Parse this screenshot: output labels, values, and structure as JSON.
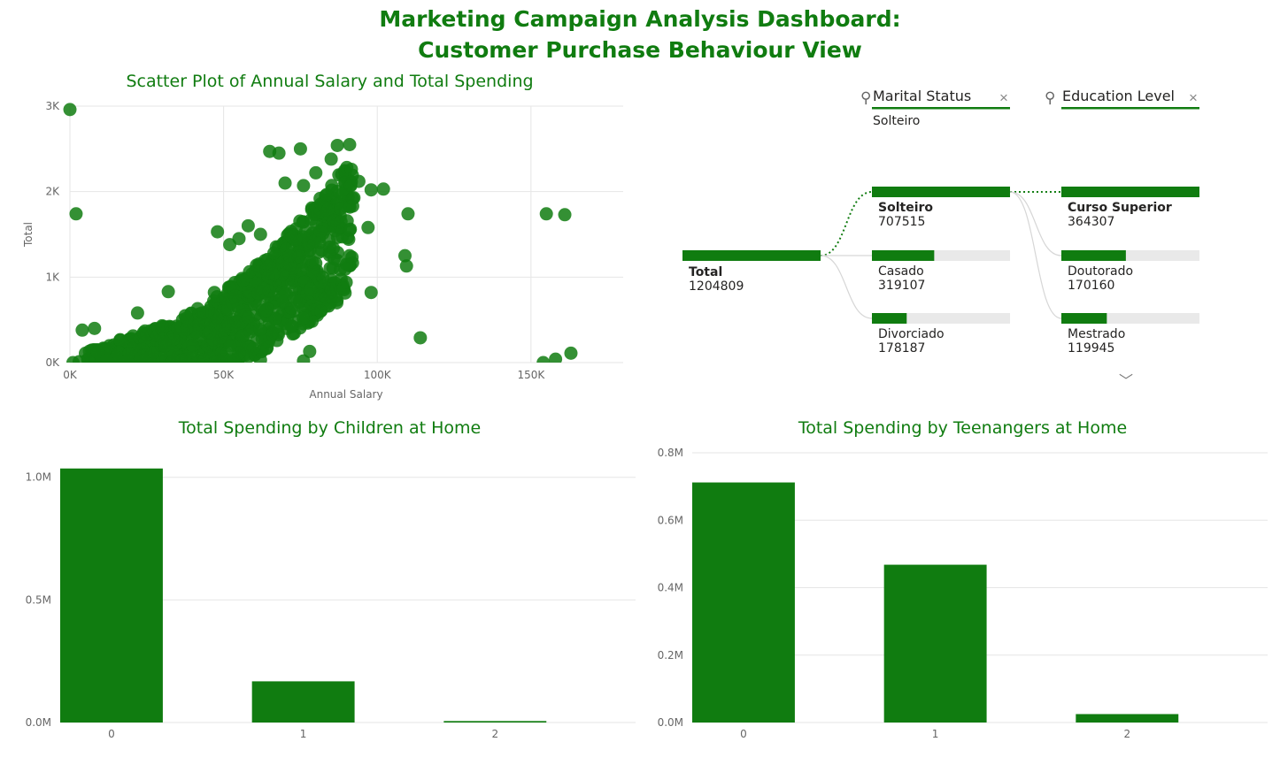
{
  "title": {
    "line1": "Marketing Campaign Analysis Dashboard:",
    "line2": "Customer Purchase Behaviour View"
  },
  "colors": {
    "accent": "#107C10",
    "track": "#e9e9e9",
    "grid": "#e6e6e6",
    "text": "#252423",
    "muted": "#666666"
  },
  "scatter": {
    "title": "Scatter Plot of Annual Salary and Total Spending",
    "xlabel": "Annual Salary",
    "ylabel": "Total",
    "xticks": [
      "0K",
      "50K",
      "100K",
      "150K"
    ],
    "yticks": [
      "0K",
      "1K",
      "2K",
      "3K"
    ]
  },
  "decomp": {
    "filters": [
      {
        "label": "Marital Status",
        "value": "Solteiro",
        "icon": "lightbulb-icon"
      },
      {
        "label": "Education Level",
        "value": "",
        "icon": "lightbulb-icon"
      }
    ],
    "total": {
      "label": "Total",
      "value": "1204809"
    },
    "marital": [
      {
        "label": "Solteiro",
        "value": "707515"
      },
      {
        "label": "Casado",
        "value": "319107"
      },
      {
        "label": "Divorciado",
        "value": "178187"
      }
    ],
    "education": [
      {
        "label": "Curso Superior",
        "value": "364307"
      },
      {
        "label": "Doutorado",
        "value": "170160"
      },
      {
        "label": "Mestrado",
        "value": "119945"
      }
    ]
  },
  "chart_data": [
    {
      "type": "scatter",
      "title": "Scatter Plot of Annual Salary and Total Spending",
      "xlabel": "Annual Salary",
      "ylabel": "Total",
      "xlim": [
        0,
        180000
      ],
      "ylim": [
        0,
        3000
      ],
      "grid": true,
      "outliers": [
        [
          0,
          2960
        ],
        [
          2000,
          1740
        ],
        [
          4000,
          380
        ],
        [
          8000,
          400
        ],
        [
          22000,
          580
        ],
        [
          32000,
          830
        ],
        [
          38000,
          520
        ],
        [
          48000,
          1530
        ],
        [
          52000,
          1380
        ],
        [
          58000,
          1600
        ],
        [
          68000,
          2450
        ],
        [
          75000,
          2500
        ],
        [
          80000,
          2220
        ],
        [
          85000,
          2380
        ],
        [
          87000,
          2540
        ],
        [
          91000,
          2550
        ],
        [
          94000,
          2120
        ],
        [
          98000,
          2020
        ],
        [
          97000,
          1580
        ],
        [
          92000,
          1920
        ],
        [
          90000,
          1150
        ],
        [
          85000,
          860
        ],
        [
          89000,
          870
        ],
        [
          98000,
          820
        ],
        [
          102000,
          2030
        ],
        [
          110000,
          1740
        ],
        [
          91000,
          1250
        ],
        [
          88000,
          1800
        ],
        [
          72000,
          430
        ],
        [
          109000,
          1250
        ],
        [
          109500,
          1130
        ],
        [
          114000,
          290
        ],
        [
          91000,
          1550
        ],
        [
          155000,
          1740
        ],
        [
          161000,
          1730
        ],
        [
          154000,
          0
        ],
        [
          158000,
          40
        ],
        [
          163000,
          110
        ],
        [
          76000,
          2070
        ],
        [
          65000,
          2470
        ],
        [
          70000,
          2100
        ],
        [
          62000,
          1500
        ],
        [
          55000,
          1450
        ],
        [
          47000,
          820
        ],
        [
          43000,
          580
        ],
        [
          30000,
          430
        ],
        [
          15000,
          60
        ],
        [
          9000,
          120
        ],
        [
          6000,
          20
        ],
        [
          1000,
          0
        ],
        [
          3000,
          10
        ],
        [
          12000,
          30
        ],
        [
          62000,
          30
        ],
        [
          76000,
          20
        ],
        [
          78000,
          130
        ]
      ],
      "cloud": {
        "salary_range": [
          5000,
          100000
        ],
        "total_range": [
          0,
          2300
        ],
        "points": 900
      }
    },
    {
      "type": "bar",
      "title": "Total Spending by Children at Home",
      "categories": [
        "0",
        "1",
        "2"
      ],
      "values": [
        1036000,
        168000,
        6000
      ],
      "ylim": [
        0,
        1100000
      ],
      "yticks": [
        "0.0M",
        "0.5M",
        "1.0M"
      ],
      "ytick_values": [
        0,
        500000,
        1000000
      ]
    },
    {
      "type": "bar",
      "title": "Total Spending by Teenangers at Home",
      "categories": [
        "0",
        "1",
        "2"
      ],
      "values": [
        712000,
        468000,
        25000
      ],
      "ylim": [
        0,
        800000
      ],
      "yticks": [
        "0.0M",
        "0.2M",
        "0.4M",
        "0.6M",
        "0.8M"
      ],
      "ytick_values": [
        0,
        200000,
        400000,
        600000,
        800000
      ]
    },
    {
      "type": "decomposition-tree",
      "total": 1204809,
      "level1": {
        "name": "Marital Status",
        "categories": [
          "Solteiro",
          "Casado",
          "Divorciado"
        ],
        "values": [
          707515,
          319107,
          178187
        ]
      },
      "level2": {
        "name": "Education Level",
        "categories": [
          "Curso Superior",
          "Doutorado",
          "Mestrado"
        ],
        "values": [
          364307,
          170160,
          119945
        ]
      }
    }
  ]
}
